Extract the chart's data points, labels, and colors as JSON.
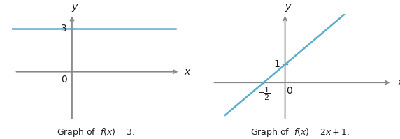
{
  "line_color": "#5aaccc",
  "axis_color": "#888888",
  "text_color": "#1a1a1a",
  "bg_color": "#ffffff",
  "graph1": {
    "title": "Graph of  $f(x) = 3$.",
    "xlim": [
      -2.5,
      4.5
    ],
    "ylim": [
      -3.5,
      4.0
    ],
    "y_const": 3
  },
  "graph2": {
    "title": "Graph of  $f(x) = 2x + 1$.",
    "xlim": [
      -1.8,
      2.5
    ],
    "ylim": [
      -2.2,
      3.8
    ],
    "x_line_start": -1.4,
    "x_line_end": 1.5,
    "y_intercept": 1,
    "slope": 2
  }
}
